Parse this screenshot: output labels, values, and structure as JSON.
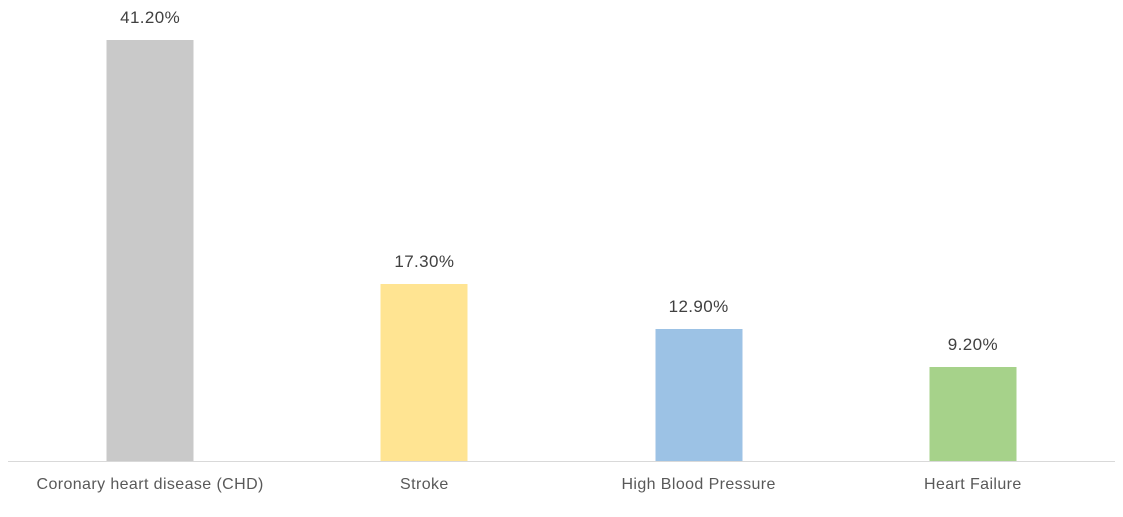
{
  "chart_data": {
    "type": "bar",
    "orientation": "vertical",
    "title": "",
    "xlabel": "",
    "ylabel": "",
    "categories": [
      "Coronary heart disease (CHD)",
      "Stroke",
      "High Blood Pressure",
      "Heart Failure"
    ],
    "values": [
      41.2,
      17.3,
      12.9,
      9.2
    ],
    "data_labels": [
      "41.20%",
      "17.30%",
      "12.90%",
      "9.20%"
    ],
    "bar_colors": [
      "#C9C9C9",
      "#FFE492",
      "#9CC2E5",
      "#A6D28A"
    ],
    "ylim": [
      0,
      45
    ],
    "grid": false,
    "legend": false,
    "baseline_color": "#D9D9D9",
    "data_label_color": "#404040",
    "category_label_color": "#595959",
    "background_color": "#FFFFFF"
  }
}
